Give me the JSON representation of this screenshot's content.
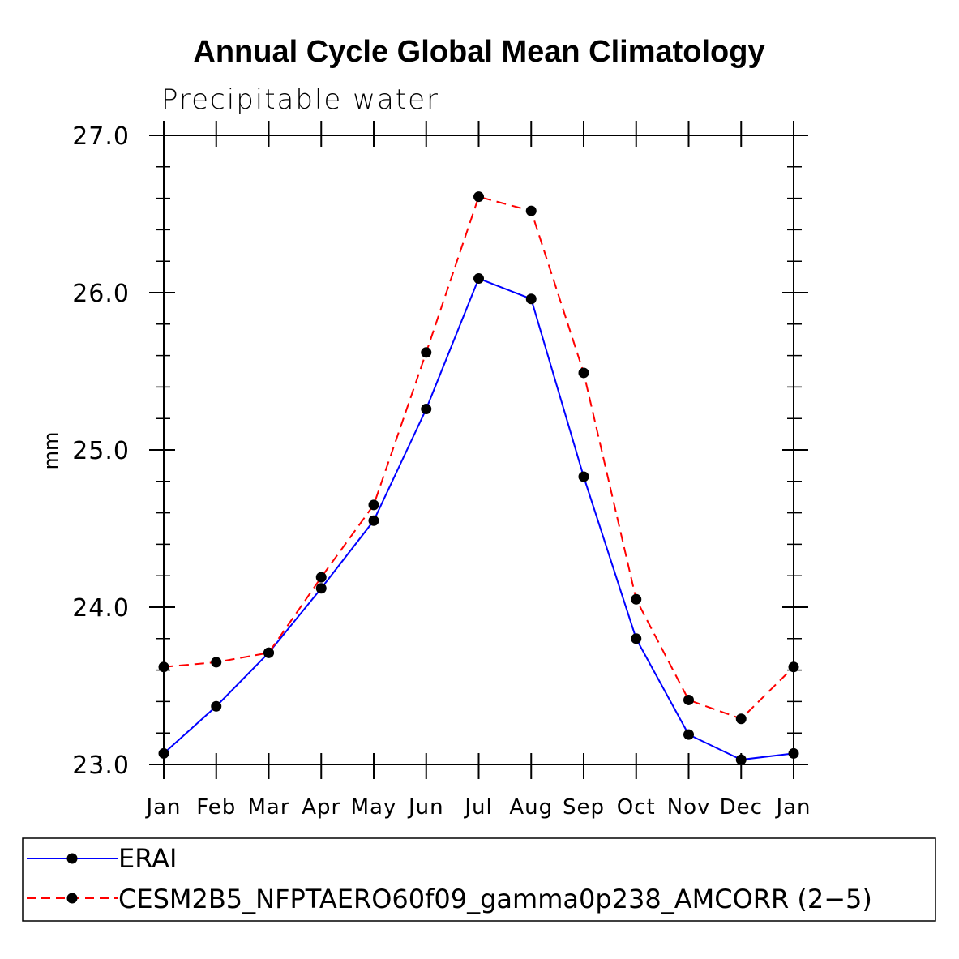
{
  "chart_data": {
    "type": "line",
    "title": "Annual Cycle Global Mean Climatology",
    "subtitle": "Precipitable water",
    "ylabel": "mm",
    "xlabel": "",
    "categories": [
      "Jan",
      "Feb",
      "Mar",
      "Apr",
      "May",
      "Jun",
      "Jul",
      "Aug",
      "Sep",
      "Oct",
      "Nov",
      "Dec",
      "Jan"
    ],
    "ylim": [
      23.0,
      27.0
    ],
    "yticks": [
      "23.0",
      "24.0",
      "25.0",
      "26.0",
      "27.0"
    ],
    "ytick_values": [
      23.0,
      24.0,
      25.0,
      26.0,
      27.0
    ],
    "minor_tick_step": 0.2,
    "grid": false,
    "legend_position": "bottom",
    "series": [
      {
        "name": "ERAI",
        "color": "#0000ff",
        "dash": "solid",
        "values": [
          23.07,
          23.37,
          23.71,
          24.12,
          24.55,
          25.26,
          26.09,
          25.96,
          24.83,
          23.8,
          23.19,
          23.03,
          23.07
        ]
      },
      {
        "name": "CESM2B5_NFPTAERO60f09_gamma0p238_AMCORR (2−5)",
        "color": "#ff0000",
        "dash": "dashed",
        "values": [
          23.62,
          23.65,
          23.71,
          24.19,
          24.65,
          25.62,
          26.61,
          26.52,
          25.49,
          24.05,
          23.41,
          23.29,
          23.62
        ]
      }
    ],
    "marker_color": "#000000"
  }
}
